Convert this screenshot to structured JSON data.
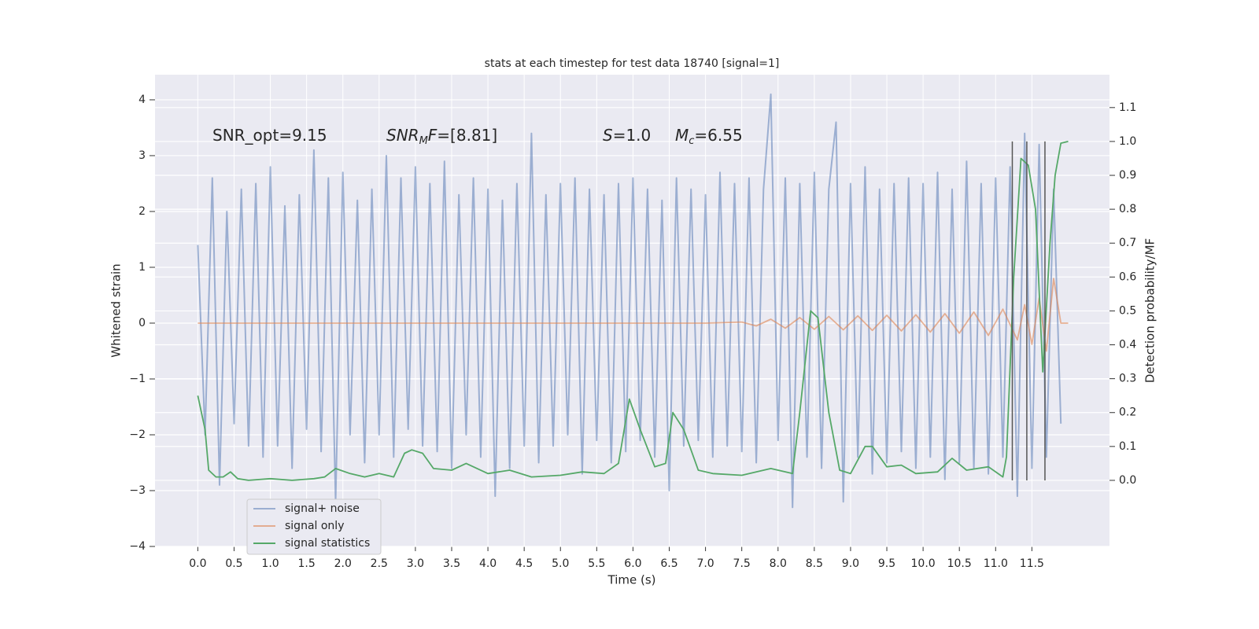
{
  "chart_data": {
    "type": "line",
    "title": "stats at each timestep for test data 18740 [signal=1]",
    "xlabel": "Time (s)",
    "ylabel": "Whitened strain",
    "y2label": "Detection probability/MF",
    "xlim": [
      -0.59,
      12.57
    ],
    "ylim": [
      -4,
      4.45
    ],
    "y2lim": [
      -0.195,
      1.197
    ],
    "xticks": [
      {
        "value": 0,
        "label": "0.0"
      },
      0.5,
      {
        "value": 1,
        "label": "1.0"
      },
      1.5,
      {
        "value": 2,
        "label": "2.0"
      },
      2.5,
      {
        "value": 3,
        "label": "3.0"
      },
      3.5,
      {
        "value": 4,
        "label": "4.0"
      },
      4.5,
      {
        "value": 5,
        "label": "5.0"
      },
      5.5,
      {
        "value": 6,
        "label": "6.0"
      },
      6.5,
      {
        "value": 7,
        "label": "7.0"
      },
      7.5,
      {
        "value": 8,
        "label": "8.0"
      },
      8.5,
      {
        "value": 9,
        "label": "9.0"
      },
      9.5,
      {
        "value": 10,
        "label": "10.0"
      },
      10.5,
      {
        "value": 11,
        "label": "11.0"
      },
      11.5
    ],
    "yticks": [
      {
        "value": -4,
        "label": "−4"
      },
      {
        "value": -3,
        "label": "−3"
      },
      {
        "value": -2,
        "label": "−2"
      },
      {
        "value": -1,
        "label": "−1"
      },
      0,
      1,
      2,
      3,
      4
    ],
    "y2ticks": [
      {
        "value": 0,
        "label": "0.0"
      },
      0.1,
      0.2,
      0.3,
      0.4,
      0.5,
      0.6,
      0.7,
      0.8,
      0.9,
      {
        "value": 1,
        "label": "1.0"
      },
      1.1
    ],
    "grid": true,
    "legend": "lower left",
    "annotations": [
      [
        {
          "t": "SNR_opt=9.15"
        }
      ],
      [
        {
          "t": "SNR",
          "italic": true
        },
        {
          "t": "M",
          "italic": true,
          "sub": true
        },
        {
          "t": "F",
          "italic": true
        },
        {
          "t": "=[8.81]"
        }
      ],
      [
        {
          "t": "S",
          "italic": true
        },
        {
          "t": "=1.0"
        }
      ],
      [
        {
          "t": "M",
          "italic": true
        },
        {
          "t": "c",
          "italic": true,
          "sub": true
        },
        {
          "t": "=6.55"
        }
      ]
    ],
    "vlines": {
      "x": [
        11.23,
        11.43,
        11.68
      ],
      "ymin": 0,
      "ymax": 1,
      "axis": "y2",
      "color": "#555555"
    },
    "series": [
      {
        "name": "signal+ noise",
        "color": "#4c72b0",
        "opacity": 0.5,
        "x": [
          0.0,
          0.1,
          0.2,
          0.3,
          0.4,
          0.5,
          0.6,
          0.7,
          0.8,
          0.9,
          1.0,
          1.1,
          1.2,
          1.3,
          1.4,
          1.5,
          1.6,
          1.7,
          1.8,
          1.9,
          2.0,
          2.1,
          2.2,
          2.3,
          2.4,
          2.5,
          2.6,
          2.7,
          2.8,
          2.9,
          3.0,
          3.1,
          3.2,
          3.3,
          3.4,
          3.5,
          3.6,
          3.7,
          3.8,
          3.9,
          4.0,
          4.1,
          4.2,
          4.3,
          4.4,
          4.5,
          4.6,
          4.7,
          4.8,
          4.9,
          5.0,
          5.1,
          5.2,
          5.3,
          5.4,
          5.5,
          5.6,
          5.7,
          5.8,
          5.9,
          6.0,
          6.1,
          6.2,
          6.3,
          6.4,
          6.5,
          6.6,
          6.7,
          6.8,
          6.9,
          7.0,
          7.1,
          7.2,
          7.3,
          7.4,
          7.5,
          7.6,
          7.7,
          7.8,
          7.9,
          8.0,
          8.1,
          8.2,
          8.3,
          8.4,
          8.5,
          8.6,
          8.7,
          8.8,
          8.9,
          9.0,
          9.1,
          9.2,
          9.3,
          9.4,
          9.5,
          9.6,
          9.7,
          9.8,
          9.9,
          10.0,
          10.1,
          10.2,
          10.3,
          10.4,
          10.5,
          10.6,
          10.7,
          10.8,
          10.9,
          11.0,
          11.1,
          11.2,
          11.3,
          11.4,
          11.5,
          11.6,
          11.7,
          11.8,
          11.9
        ],
        "values": [
          1.4,
          -2.0,
          2.6,
          -2.9,
          2.0,
          -1.8,
          2.4,
          -2.2,
          2.5,
          -2.4,
          2.8,
          -2.2,
          2.1,
          -2.6,
          2.3,
          -1.9,
          3.1,
          -2.3,
          2.6,
          -3.2,
          2.7,
          -2.0,
          2.2,
          -2.5,
          2.4,
          -2.0,
          3.0,
          -2.4,
          2.6,
          -1.9,
          2.8,
          -2.2,
          2.5,
          -2.3,
          2.9,
          -2.6,
          2.3,
          -2.0,
          2.6,
          -2.4,
          2.4,
          -3.1,
          2.2,
          -2.6,
          2.5,
          -2.2,
          3.4,
          -2.5,
          2.3,
          -2.2,
          2.5,
          -2.0,
          2.6,
          -2.7,
          2.4,
          -2.1,
          2.3,
          -2.5,
          2.5,
          -2.3,
          2.6,
          -2.1,
          2.4,
          -2.4,
          2.2,
          -3.0,
          2.6,
          -2.2,
          2.4,
          -2.1,
          2.3,
          -2.4,
          2.7,
          -2.2,
          2.5,
          -2.3,
          2.6,
          -2.5,
          2.4,
          4.1,
          -2.1,
          2.6,
          -3.3,
          2.5,
          -2.4,
          2.7,
          -2.6,
          2.4,
          3.6,
          -3.2,
          2.5,
          -2.4,
          2.8,
          -2.7,
          2.4,
          -2.5,
          2.5,
          -2.3,
          2.6,
          -2.6,
          2.5,
          -2.4,
          2.7,
          -2.8,
          2.4,
          -2.5,
          2.9,
          -2.6,
          2.5,
          -2.7,
          2.6,
          -2.4,
          2.8,
          -3.1,
          3.4,
          -2.6,
          3.2,
          -2.4,
          2.4,
          -1.8
        ]
      },
      {
        "name": "signal only",
        "color": "#dd8452",
        "opacity": 0.6,
        "x": [
          0,
          7.0,
          7.5,
          7.7,
          7.9,
          8.1,
          8.3,
          8.5,
          8.7,
          8.9,
          9.1,
          9.3,
          9.5,
          9.7,
          9.9,
          10.1,
          10.3,
          10.5,
          10.7,
          10.9,
          11.1,
          11.3,
          11.4,
          11.5,
          11.6,
          11.7,
          11.8,
          11.9,
          12.0
        ],
        "values": [
          0,
          0,
          0.02,
          -0.05,
          0.07,
          -0.09,
          0.1,
          -0.11,
          0.12,
          -0.12,
          0.13,
          -0.13,
          0.14,
          -0.14,
          0.15,
          -0.16,
          0.17,
          -0.18,
          0.2,
          -0.22,
          0.25,
          -0.3,
          0.33,
          -0.38,
          0.45,
          -0.5,
          0.8,
          0,
          0
        ]
      },
      {
        "name": "signal statistics",
        "color": "#55a868",
        "opacity": 1,
        "axis": "y2",
        "x": [
          0.0,
          0.1,
          0.15,
          0.25,
          0.35,
          0.45,
          0.55,
          0.7,
          1.0,
          1.3,
          1.6,
          1.75,
          1.9,
          2.1,
          2.3,
          2.5,
          2.7,
          2.85,
          2.95,
          3.1,
          3.25,
          3.5,
          3.7,
          4.0,
          4.3,
          4.6,
          5.0,
          5.3,
          5.6,
          5.8,
          5.95,
          6.1,
          6.3,
          6.45,
          6.55,
          6.7,
          6.9,
          7.1,
          7.5,
          7.9,
          8.2,
          8.3,
          8.45,
          8.55,
          8.7,
          8.85,
          9.0,
          9.2,
          9.3,
          9.5,
          9.7,
          9.9,
          10.2,
          10.4,
          10.6,
          10.9,
          11.1,
          11.15,
          11.25,
          11.35,
          11.45,
          11.55,
          11.65,
          11.75,
          11.82,
          11.9,
          12.0
        ],
        "values": [
          0.25,
          0.15,
          0.03,
          0.01,
          0.01,
          0.025,
          0.005,
          0.0,
          0.005,
          0.0,
          0.005,
          0.01,
          0.035,
          0.02,
          0.01,
          0.02,
          0.01,
          0.08,
          0.09,
          0.08,
          0.035,
          0.03,
          0.05,
          0.02,
          0.03,
          0.01,
          0.015,
          0.025,
          0.02,
          0.05,
          0.24,
          0.15,
          0.04,
          0.05,
          0.2,
          0.15,
          0.03,
          0.02,
          0.015,
          0.035,
          0.02,
          0.2,
          0.5,
          0.48,
          0.2,
          0.03,
          0.02,
          0.1,
          0.1,
          0.04,
          0.045,
          0.02,
          0.025,
          0.065,
          0.03,
          0.04,
          0.01,
          0.07,
          0.6,
          0.95,
          0.93,
          0.8,
          0.32,
          0.7,
          0.9,
          0.995,
          1.0
        ]
      }
    ]
  }
}
